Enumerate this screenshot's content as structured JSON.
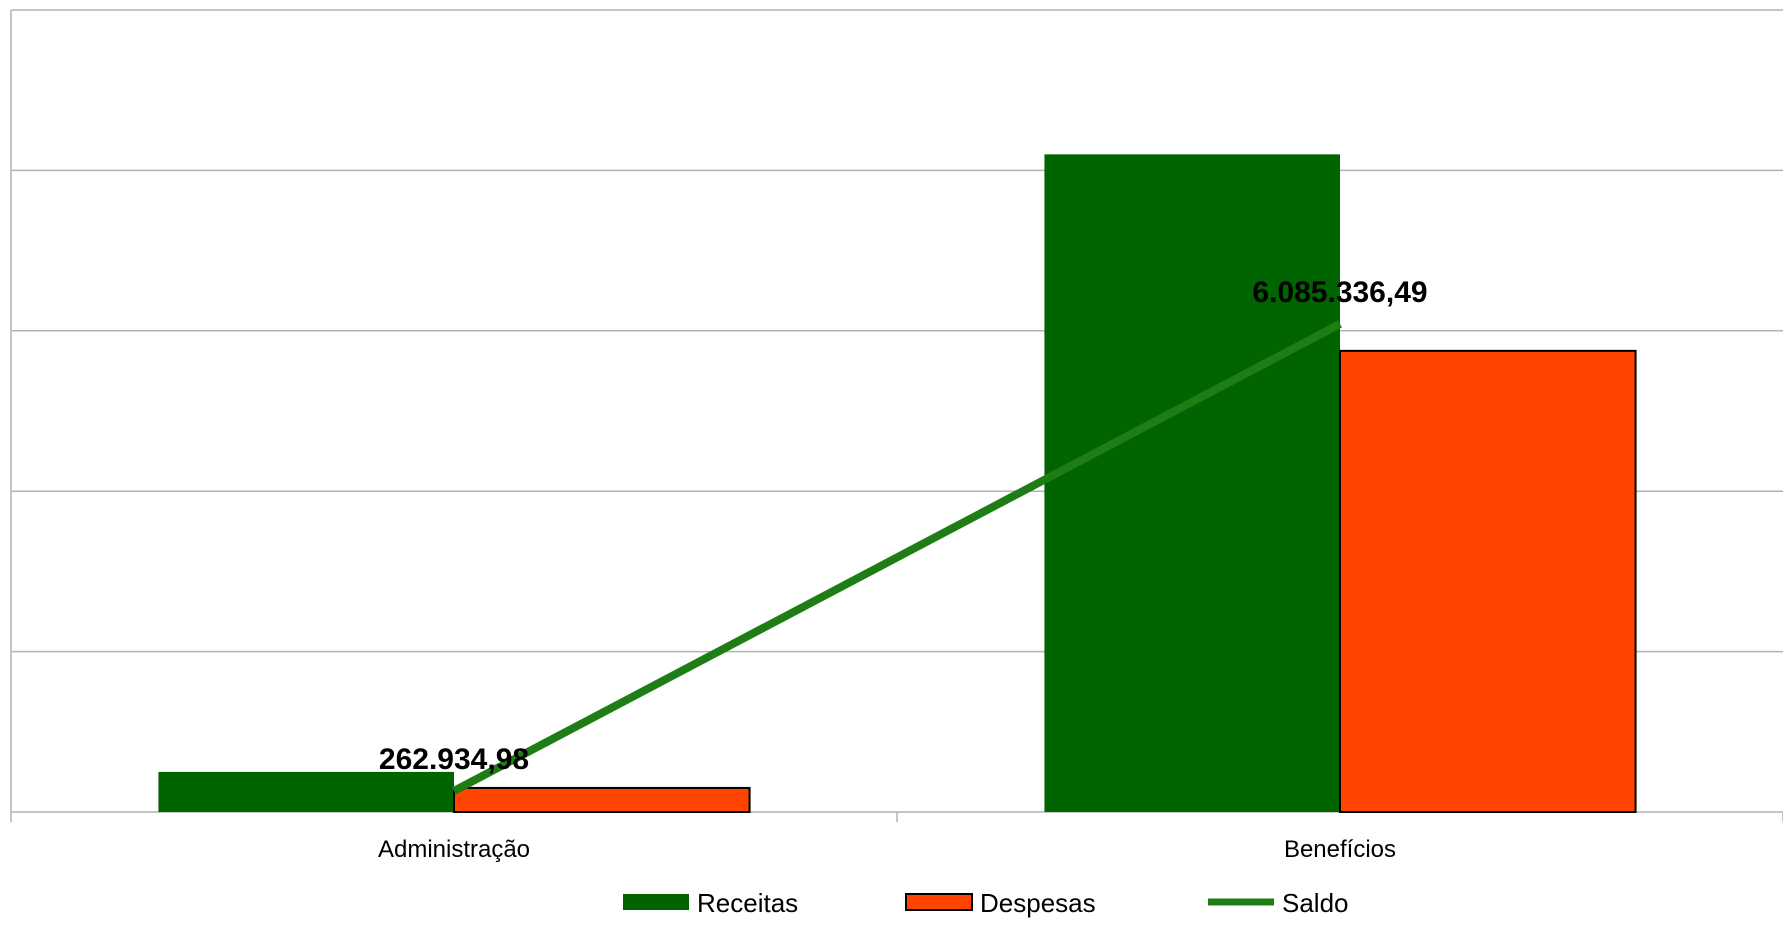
{
  "chart_data": {
    "type": "bar",
    "title": "",
    "xlabel": "",
    "ylabel": "",
    "categories": [
      "Administração",
      "Benefícios"
    ],
    "ylim": [
      0,
      10000000
    ],
    "grid": true,
    "legend_position": "bottom",
    "series": [
      {
        "name": "Receitas",
        "type": "bar",
        "color": "#006400",
        "values": [
          500000,
          8200000
        ]
      },
      {
        "name": "Despesas",
        "type": "bar",
        "color": "#FF4500",
        "values": [
          300000,
          5750000
        ]
      },
      {
        "name": "Saldo",
        "type": "line",
        "color": "#1E7D14",
        "values": [
          262934.98,
          6085336.49
        ],
        "labels": [
          "262.934,98",
          "6.085.336,49"
        ]
      }
    ]
  }
}
